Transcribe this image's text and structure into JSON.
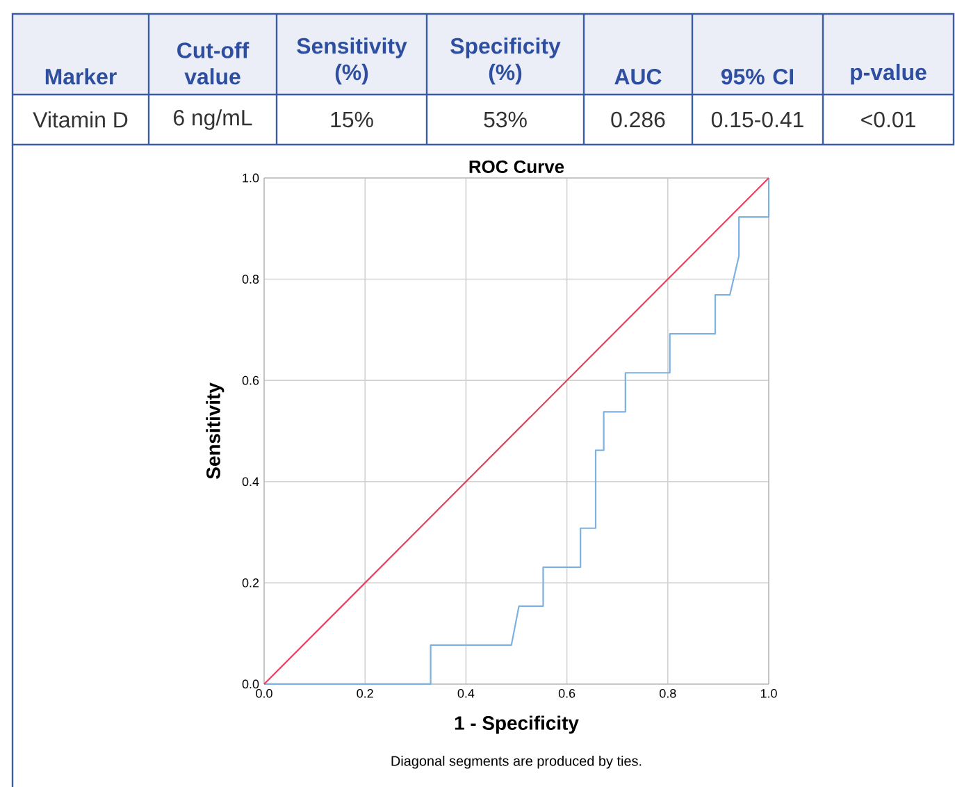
{
  "chart_data": [
    {
      "type": "other",
      "categories": [
        "Marker",
        "Cut-off value",
        "Sensitivity (%)",
        "Specificity (%)",
        "AUC",
        "95% CI",
        "p-value"
      ],
      "annotations": [
        "Vitamin D",
        "6 ng/mL",
        "15%",
        "53%",
        "0.286",
        "0.15-0.41",
        "<0.01"
      ]
    },
    {
      "type": "line",
      "title": "ROC Curve",
      "xlabel": "1 - Specificity",
      "ylabel": "Sensitivity",
      "annotations": [
        "Diagonal segments are produced by ties."
      ],
      "xlim": [
        0,
        1
      ],
      "ylim": [
        0,
        1
      ],
      "xticks": [
        {
          "value": 0,
          "label": "0.0"
        },
        0.2,
        0.4,
        0.6,
        0.8,
        {
          "value": 1,
          "label": "1.0"
        }
      ],
      "yticks": [
        {
          "value": 0,
          "label": "0.0"
        },
        0.2,
        0.4,
        0.6,
        0.8,
        {
          "value": 1,
          "label": "1.0"
        }
      ],
      "grid": true,
      "series": [
        {
          "color": "#7eb0e0",
          "x": [
            0,
            0.33,
            0.33,
            0.49,
            0.505,
            0.553,
            0.553,
            0.627,
            0.627,
            0.657,
            0.657,
            0.673,
            0.673,
            0.716,
            0.716,
            0.804,
            0.804,
            0.894,
            0.894,
            0.923,
            0.941,
            0.941,
            1,
            1
          ],
          "values": [
            0,
            0,
            0.077,
            0.077,
            0.154,
            0.154,
            0.231,
            0.231,
            0.308,
            0.308,
            0.462,
            0.462,
            0.538,
            0.538,
            0.615,
            0.615,
            0.692,
            0.692,
            0.769,
            0.769,
            0.846,
            0.923,
            0.923,
            1
          ]
        },
        {
          "color": "#e8415e",
          "x": [
            0,
            1
          ],
          "values": [
            0,
            1
          ]
        }
      ]
    }
  ]
}
